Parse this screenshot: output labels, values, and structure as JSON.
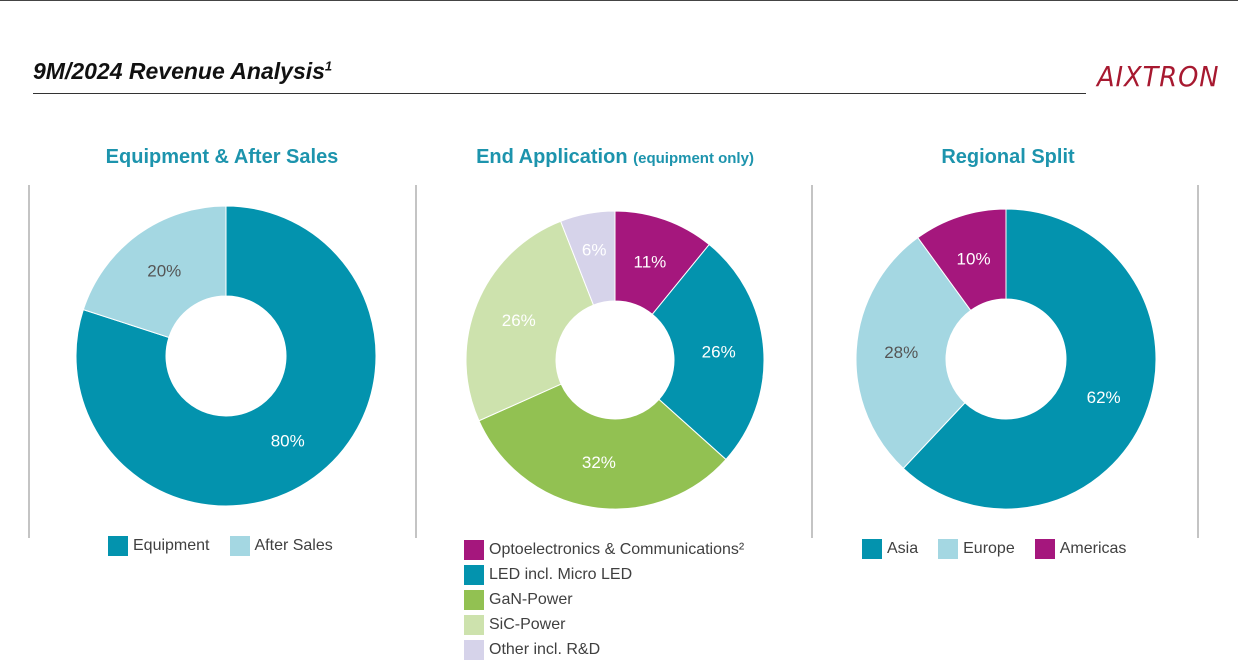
{
  "header": {
    "title": "9M/2024 Revenue Analysis",
    "title_sup": "1",
    "logo_text": "AIXTRON"
  },
  "colors": {
    "teal": "#0393ae",
    "light_blue": "#a4d7e2",
    "magenta": "#a5177d",
    "green": "#92c152",
    "light_green": "#cde2ad",
    "lavender": "#d6d3ea"
  },
  "chart_data": [
    {
      "type": "pie",
      "variant": "donut",
      "title": "Equipment & After Sales",
      "subtitle": "",
      "slices": [
        {
          "name": "Equipment",
          "value": 80,
          "label": "80%",
          "color": "#0393ae",
          "label_color": "#ffffff"
        },
        {
          "name": "After Sales",
          "value": 20,
          "label": "20%",
          "color": "#a4d7e2",
          "label_color": "#555555"
        }
      ],
      "legend": "bottom"
    },
    {
      "type": "pie",
      "variant": "donut",
      "title": "End Application",
      "subtitle": "(equipment only)",
      "slices": [
        {
          "name": "Optoelectronics & Communications²",
          "value": 11,
          "label": "11%",
          "color": "#a5177d",
          "label_color": "#ffffff"
        },
        {
          "name": "LED incl. Micro LED",
          "value": 26,
          "label": "26%",
          "color": "#0393ae",
          "label_color": "#ffffff"
        },
        {
          "name": "GaN-Power",
          "value": 32,
          "label": "32%",
          "color": "#92c152",
          "label_color": "#ffffff"
        },
        {
          "name": "SiC-Power",
          "value": 26,
          "label": "26%",
          "color": "#cde2ad",
          "label_color": "#ffffff"
        },
        {
          "name": "Other incl. R&D",
          "value": 6,
          "label": "6%",
          "color": "#d6d3ea",
          "label_color": "#ffffff"
        }
      ],
      "legend": "bottom"
    },
    {
      "type": "pie",
      "variant": "donut",
      "title": "Regional Split",
      "subtitle": "",
      "slices": [
        {
          "name": "Asia",
          "value": 62,
          "label": "62%",
          "color": "#0393ae",
          "label_color": "#ffffff"
        },
        {
          "name": "Europe",
          "value": 28,
          "label": "28%",
          "color": "#a4d7e2",
          "label_color": "#555555"
        },
        {
          "name": "Americas",
          "value": 10,
          "label": "10%",
          "color": "#a5177d",
          "label_color": "#ffffff"
        }
      ],
      "legend": "bottom"
    }
  ]
}
